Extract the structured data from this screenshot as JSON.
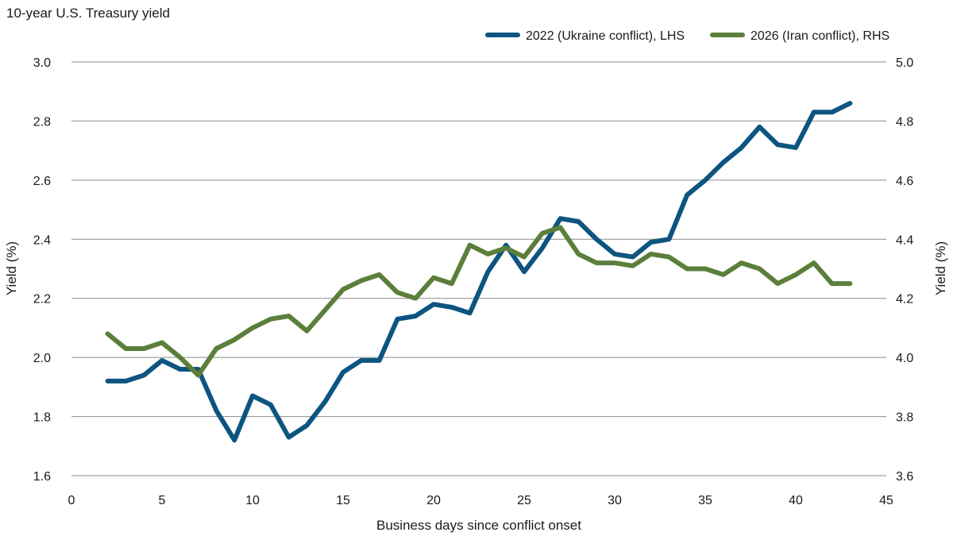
{
  "chart_data": {
    "type": "line",
    "title": "10-year U.S. Treasury yield",
    "xlabel": "Business days since conflict onset",
    "ylabel_left": "Yield (%)",
    "ylabel_right": "Yield (%)",
    "xlim": [
      0,
      45
    ],
    "x_ticks": [
      0,
      5,
      10,
      15,
      20,
      25,
      30,
      35,
      40,
      45
    ],
    "ylim_left": [
      1.6,
      3.0
    ],
    "y_ticks_left": [
      "1.6",
      "1.8",
      "2.0",
      "2.2",
      "2.4",
      "2.6",
      "2.8",
      "3.0"
    ],
    "ylim_right": [
      3.6,
      5.0
    ],
    "y_ticks_right": [
      "3.6",
      "3.8",
      "4.0",
      "4.2",
      "4.4",
      "4.6",
      "4.8",
      "5.0"
    ],
    "grid": "horizontal",
    "legend_position": "top-right",
    "series": [
      {
        "name": "2022 (Ukraine conflict), LHS",
        "axis": "left",
        "color": "#0d5580",
        "x": [
          2,
          3,
          4,
          5,
          6,
          7,
          8,
          9,
          10,
          11,
          12,
          13,
          14,
          15,
          16,
          17,
          18,
          19,
          20,
          21,
          22,
          23,
          24,
          25,
          26,
          27,
          28,
          29,
          30,
          31,
          32,
          33,
          34,
          35,
          36,
          37,
          38,
          39,
          40,
          41,
          42,
          43
        ],
        "values": [
          1.92,
          1.92,
          1.94,
          1.99,
          1.96,
          1.96,
          1.82,
          1.72,
          1.87,
          1.84,
          1.73,
          1.77,
          1.85,
          1.95,
          1.99,
          1.99,
          2.13,
          2.14,
          2.18,
          2.17,
          2.15,
          2.29,
          2.38,
          2.29,
          2.37,
          2.47,
          2.46,
          2.4,
          2.35,
          2.34,
          2.39,
          2.4,
          2.55,
          2.6,
          2.66,
          2.71,
          2.78,
          2.72,
          2.71,
          2.83,
          2.83,
          2.86
        ]
      },
      {
        "name": "2026 (Iran conflict), RHS",
        "axis": "right",
        "color": "#5b7f3b",
        "x": [
          2,
          3,
          4,
          5,
          6,
          7,
          8,
          9,
          10,
          11,
          12,
          13,
          14,
          15,
          16,
          17,
          18,
          19,
          20,
          21,
          22,
          23,
          24,
          25,
          26,
          27,
          28,
          29,
          30,
          31,
          32,
          33,
          34,
          35,
          36,
          37,
          38,
          39,
          40,
          41,
          42,
          43
        ],
        "values": [
          4.08,
          4.03,
          4.03,
          4.05,
          4.0,
          3.94,
          4.03,
          4.06,
          4.1,
          4.13,
          4.14,
          4.09,
          4.16,
          4.23,
          4.26,
          4.28,
          4.22,
          4.2,
          4.27,
          4.25,
          4.38,
          4.35,
          4.37,
          4.34,
          4.42,
          4.44,
          4.35,
          4.32,
          4.32,
          4.31,
          4.35,
          4.34,
          4.3,
          4.3,
          4.28,
          4.32,
          4.3,
          4.25,
          4.28,
          4.32,
          4.25,
          4.25
        ]
      }
    ]
  }
}
